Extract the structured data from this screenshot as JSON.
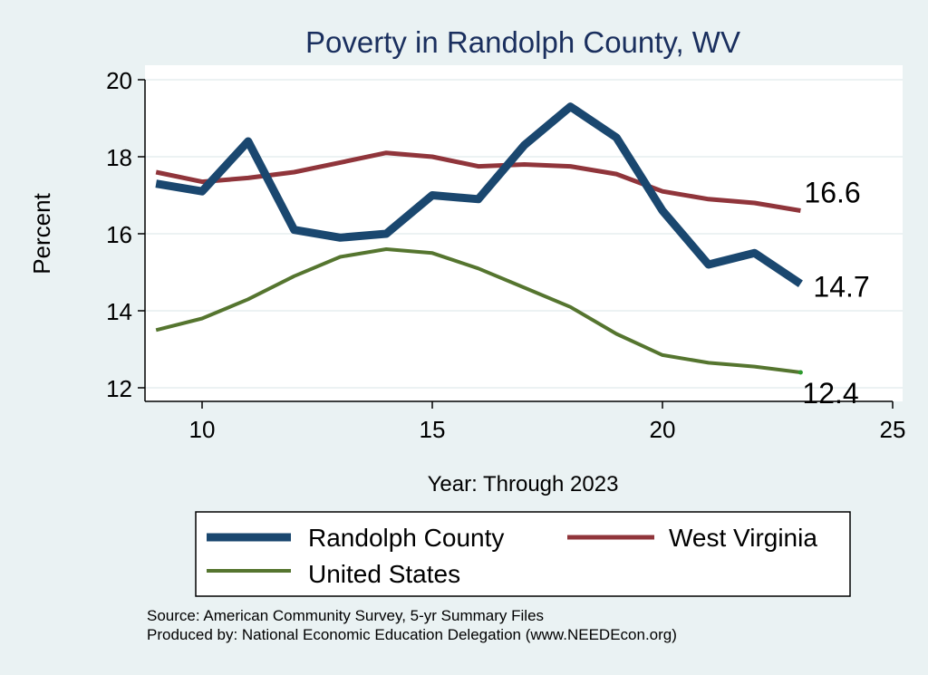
{
  "chart_data": {
    "type": "line",
    "title": "Poverty in Randolph County, WV",
    "xlabel": "Year: Through 2023",
    "ylabel": "Percent",
    "xlim": [
      9,
      25
    ],
    "ylim": [
      12,
      20
    ],
    "xticks": [
      10,
      15,
      20,
      25
    ],
    "yticks": [
      12,
      14,
      16,
      18,
      20
    ],
    "x": [
      9,
      10,
      11,
      12,
      13,
      14,
      15,
      16,
      17,
      18,
      19,
      20,
      21,
      22,
      23
    ],
    "grid": true,
    "legend_position": "bottom",
    "series": [
      {
        "name": "Randolph County",
        "color": "#1a476f",
        "values": [
          17.3,
          17.1,
          18.4,
          16.1,
          15.9,
          16.0,
          17.0,
          16.9,
          18.3,
          19.3,
          18.5,
          16.6,
          15.2,
          15.5,
          14.7
        ],
        "end_label": "14.7"
      },
      {
        "name": "West Virginia",
        "color": "#90353b",
        "values": [
          17.6,
          17.35,
          17.45,
          17.6,
          17.85,
          18.1,
          18.0,
          17.75,
          17.8,
          17.75,
          17.55,
          17.1,
          16.9,
          16.8,
          16.6
        ],
        "end_label": "16.6"
      },
      {
        "name": "United States",
        "color": "#55752f",
        "values": [
          13.5,
          13.8,
          14.3,
          14.9,
          15.4,
          15.6,
          15.5,
          15.1,
          14.6,
          14.1,
          13.4,
          12.85,
          12.65,
          12.55,
          12.4
        ],
        "end_label": "12.4"
      }
    ]
  },
  "footer": {
    "source": "Source: American Community Survey, 5-yr Summary Files",
    "produced": "Produced by: National Economic Education Delegation (www.NEEDEcon.org)"
  }
}
